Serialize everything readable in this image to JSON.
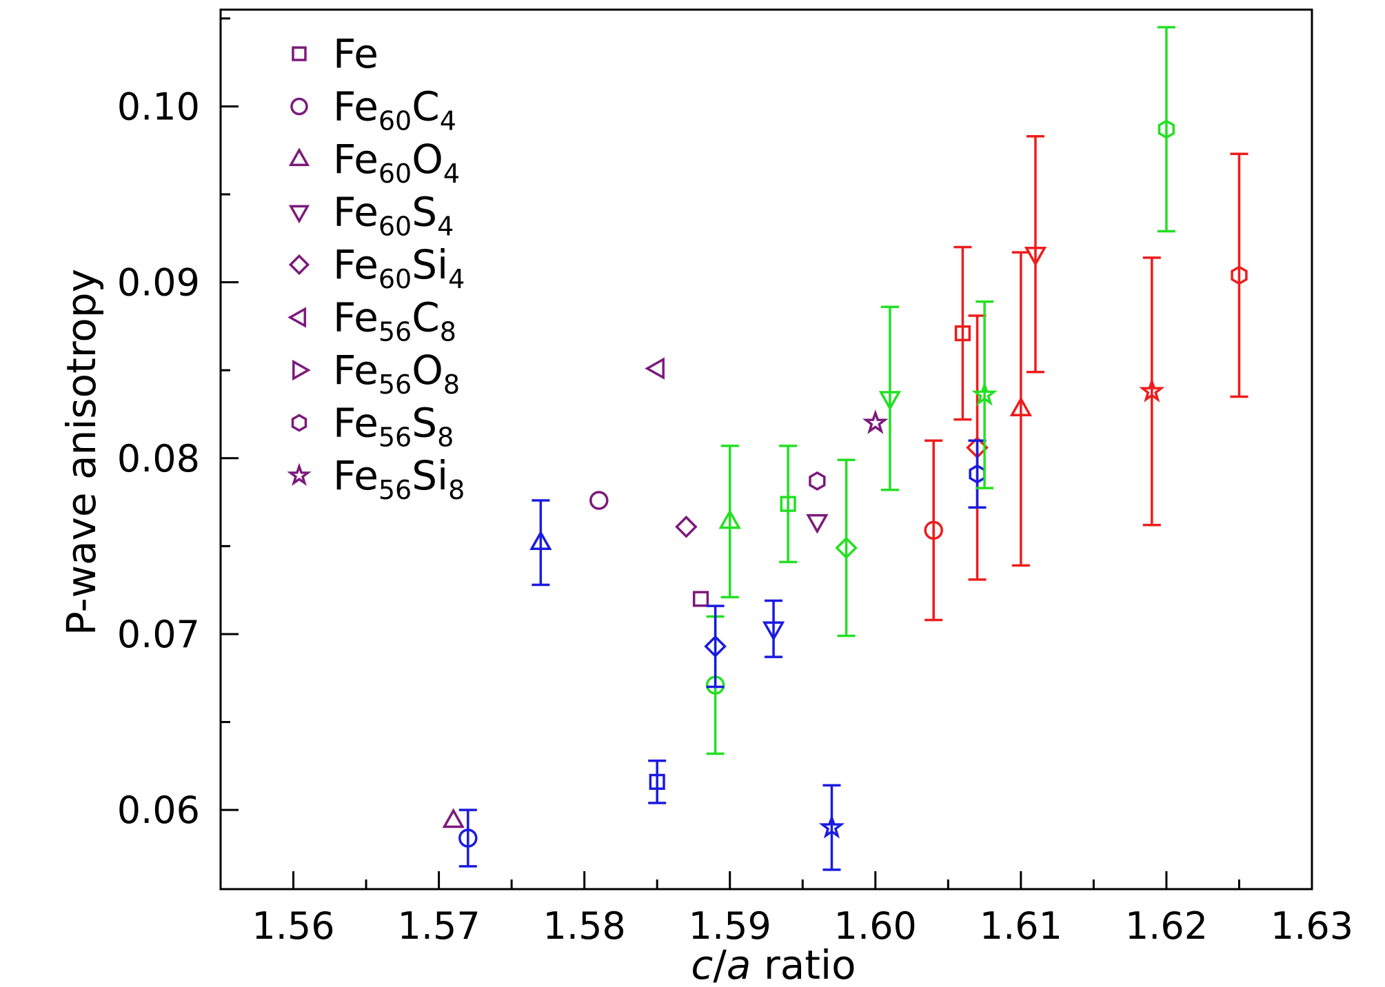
{
  "chart_data": {
    "type": "scatter",
    "xlabel_italic_1": "c",
    "xlabel_slash": "/",
    "xlabel_italic_2": "a",
    "xlabel_rest": " ratio",
    "ylabel": "P-wave anisotropy",
    "xlim": [
      1.555,
      1.63
    ],
    "ylim": [
      0.0555,
      0.1055
    ],
    "xticks": [
      "1.56",
      "1.57",
      "1.58",
      "1.59",
      "1.60",
      "1.61",
      "1.62",
      "1.63"
    ],
    "xtick_values": [
      1.56,
      1.57,
      1.58,
      1.59,
      1.6,
      1.61,
      1.62,
      1.63
    ],
    "yticks": [
      "0.06",
      "0.07",
      "0.08",
      "0.09",
      "0.10"
    ],
    "ytick_values": [
      0.06,
      0.07,
      0.08,
      0.09,
      0.1
    ],
    "legend_position": "top-left",
    "colors": {
      "purple": "#7b1a7b",
      "blue": "#1a1ae0",
      "green": "#22e022",
      "red": "#ee1c1c"
    },
    "series": [
      {
        "name": "Fe",
        "base": "Fe",
        "sub1": "",
        "el2": "",
        "sub2": "",
        "marker": "square",
        "points": [
          {
            "x": 1.588,
            "y": 0.072,
            "err": null,
            "color": "purple"
          },
          {
            "x": 1.585,
            "y": 0.0616,
            "err": 0.0012,
            "color": "blue"
          },
          {
            "x": 1.594,
            "y": 0.0774,
            "err": 0.0033,
            "color": "green"
          },
          {
            "x": 1.606,
            "y": 0.0871,
            "err": 0.0049,
            "color": "red"
          }
        ]
      },
      {
        "name": "Fe60C4",
        "base": "Fe",
        "sub1": "60",
        "el2": "C",
        "sub2": "4",
        "marker": "circle",
        "points": [
          {
            "x": 1.581,
            "y": 0.0776,
            "err": null,
            "color": "purple"
          },
          {
            "x": 1.572,
            "y": 0.0584,
            "err": 0.0016,
            "color": "blue"
          },
          {
            "x": 1.589,
            "y": 0.0671,
            "err": 0.0039,
            "color": "green"
          },
          {
            "x": 1.604,
            "y": 0.0759,
            "err": 0.0051,
            "color": "red"
          }
        ]
      },
      {
        "name": "Fe60O4",
        "base": "Fe",
        "sub1": "60",
        "el2": "O",
        "sub2": "4",
        "marker": "triangle-up",
        "points": [
          {
            "x": 1.571,
            "y": 0.0594,
            "err": null,
            "color": "purple"
          },
          {
            "x": 1.577,
            "y": 0.0752,
            "err": 0.0024,
            "color": "blue"
          },
          {
            "x": 1.59,
            "y": 0.0764,
            "err": 0.0043,
            "color": "green"
          },
          {
            "x": 1.61,
            "y": 0.0828,
            "err": 0.0089,
            "color": "red"
          }
        ]
      },
      {
        "name": "Fe60S4",
        "base": "Fe",
        "sub1": "60",
        "el2": "S",
        "sub2": "4",
        "marker": "triangle-down",
        "points": [
          {
            "x": 1.596,
            "y": 0.0764,
            "err": null,
            "color": "purple"
          },
          {
            "x": 1.593,
            "y": 0.0703,
            "err": 0.0016,
            "color": "blue"
          },
          {
            "x": 1.601,
            "y": 0.0834,
            "err": 0.0052,
            "color": "green"
          },
          {
            "x": 1.611,
            "y": 0.0916,
            "err": 0.0067,
            "color": "red"
          }
        ]
      },
      {
        "name": "Fe60Si4",
        "base": "Fe",
        "sub1": "60",
        "el2": "Si",
        "sub2": "4",
        "marker": "diamond",
        "points": [
          {
            "x": 1.587,
            "y": 0.0761,
            "err": null,
            "color": "purple"
          },
          {
            "x": 1.589,
            "y": 0.0693,
            "err": 0.0023,
            "color": "blue"
          },
          {
            "x": 1.598,
            "y": 0.0749,
            "err": 0.005,
            "color": "green"
          },
          {
            "x": 1.607,
            "y": 0.0806,
            "err": 0.0075,
            "color": "red"
          }
        ]
      },
      {
        "name": "Fe56C8",
        "base": "Fe",
        "sub1": "56",
        "el2": "C",
        "sub2": "8",
        "marker": "triangle-left",
        "points": [
          {
            "x": 1.585,
            "y": 0.0851,
            "err": null,
            "color": "purple"
          }
        ]
      },
      {
        "name": "Fe56O8",
        "base": "Fe",
        "sub1": "56",
        "el2": "O",
        "sub2": "8",
        "marker": "triangle-right",
        "points": []
      },
      {
        "name": "Fe56S8",
        "base": "Fe",
        "sub1": "56",
        "el2": "S",
        "sub2": "8",
        "marker": "hexagon",
        "points": [
          {
            "x": 1.596,
            "y": 0.0787,
            "err": null,
            "color": "purple"
          },
          {
            "x": 1.607,
            "y": 0.0791,
            "err": 0.0019,
            "color": "blue"
          },
          {
            "x": 1.62,
            "y": 0.0987,
            "err": 0.0058,
            "color": "green"
          },
          {
            "x": 1.625,
            "y": 0.0904,
            "err": 0.0069,
            "color": "red"
          }
        ]
      },
      {
        "name": "Fe56Si8",
        "base": "Fe",
        "sub1": "56",
        "el2": "Si",
        "sub2": "8",
        "marker": "star",
        "points": [
          {
            "x": 1.6,
            "y": 0.082,
            "err": null,
            "color": "purple"
          },
          {
            "x": 1.597,
            "y": 0.059,
            "err": 0.0024,
            "color": "blue"
          },
          {
            "x": 1.6075,
            "y": 0.0836,
            "err": 0.0053,
            "color": "green"
          },
          {
            "x": 1.619,
            "y": 0.0838,
            "err": 0.0076,
            "color": "red"
          }
        ]
      }
    ]
  }
}
